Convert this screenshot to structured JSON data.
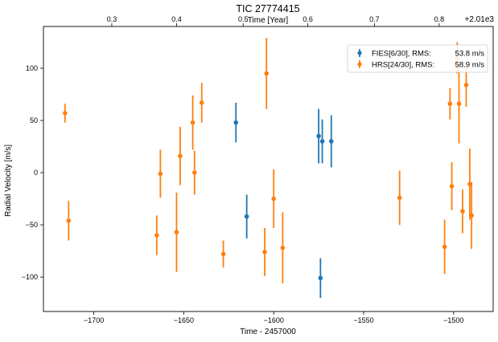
{
  "chart_data": {
    "type": "scatter",
    "title": "TIC 27774415",
    "xlabel": "Time - 2457000",
    "ylabel": "Radial Velocity [m/s]",
    "top_xlabel": "Time [Year]",
    "top_offset_label": "+2.01e3",
    "xlim": [
      -1728,
      -1478
    ],
    "ylim": [
      -133,
      140
    ],
    "x_ticks": [
      -1700,
      -1650,
      -1600,
      -1550,
      -1500
    ],
    "x_tick_labels": [
      "−1700",
      "−1650",
      "−1600",
      "−1550",
      "−1500"
    ],
    "y_ticks": [
      -100,
      -50,
      0,
      50,
      100
    ],
    "y_tick_labels": [
      "−100",
      "−50",
      "0",
      "50",
      "100"
    ],
    "top_ticks": [
      {
        "year": 0.3,
        "label": "0.3",
        "x": -1690
      },
      {
        "year": 0.4,
        "label": "0.4",
        "x": -1654
      },
      {
        "year": 0.5,
        "label": "0.5",
        "x": -1617
      },
      {
        "year": 0.6,
        "label": "0.6",
        "x": -1581
      },
      {
        "year": 0.7,
        "label": "0.7",
        "x": -1544
      },
      {
        "year": 0.8,
        "label": "0.8",
        "x": -1508
      }
    ],
    "grid": false,
    "legend_position": "top-right",
    "series": [
      {
        "name": "FIES[6/30], RMS:",
        "rms": "53.8 m/s",
        "color": "#1f77b4",
        "points": [
          {
            "x": -1621,
            "y": 48,
            "err": 19
          },
          {
            "x": -1615,
            "y": -42,
            "err": 21
          },
          {
            "x": -1575,
            "y": 35,
            "err": 26
          },
          {
            "x": -1573,
            "y": 30,
            "err": 21
          },
          {
            "x": -1574,
            "y": -101,
            "err": 19
          },
          {
            "x": -1568,
            "y": 30,
            "err": 25
          }
        ]
      },
      {
        "name": "HRS[24/30], RMS:",
        "rms": "58.9 m/s",
        "color": "#ff7f0e",
        "points": [
          {
            "x": -1716,
            "y": 57,
            "err": 9
          },
          {
            "x": -1714,
            "y": -46,
            "err": 19
          },
          {
            "x": -1665,
            "y": -60,
            "err": 19
          },
          {
            "x": -1663,
            "y": -1,
            "err": 23
          },
          {
            "x": -1654,
            "y": -57,
            "err": 38
          },
          {
            "x": -1652,
            "y": 16,
            "err": 28
          },
          {
            "x": -1645,
            "y": 48,
            "err": 26
          },
          {
            "x": -1644,
            "y": 0,
            "err": 21
          },
          {
            "x": -1640,
            "y": 67,
            "err": 19
          },
          {
            "x": -1628,
            "y": -78,
            "err": 13
          },
          {
            "x": -1605,
            "y": -76,
            "err": 23
          },
          {
            "x": -1604,
            "y": 95,
            "err": 34
          },
          {
            "x": -1600,
            "y": -25,
            "err": 28
          },
          {
            "x": -1595,
            "y": -72,
            "err": 34
          },
          {
            "x": -1530,
            "y": -24,
            "err": 26
          },
          {
            "x": -1505,
            "y": -71,
            "err": 26
          },
          {
            "x": -1502,
            "y": 66,
            "err": 15
          },
          {
            "x": -1501,
            "y": -13,
            "err": 23
          },
          {
            "x": -1498,
            "y": 110,
            "err": 15
          },
          {
            "x": -1497,
            "y": 66,
            "err": 38
          },
          {
            "x": -1495,
            "y": -37,
            "err": 21
          },
          {
            "x": -1493,
            "y": 84,
            "err": 21
          },
          {
            "x": -1491,
            "y": -11,
            "err": 34
          },
          {
            "x": -1490,
            "y": -41,
            "err": 32
          }
        ]
      }
    ]
  }
}
